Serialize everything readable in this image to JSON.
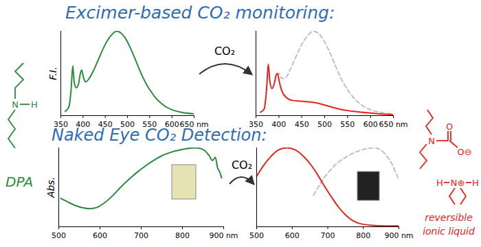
{
  "chart_data": [
    {
      "type": "line",
      "title": "Excimer-based CO₂ monitoring:",
      "ylabel": "F.I.",
      "xlim": [
        350,
        650
      ],
      "xticks": [
        350,
        400,
        450,
        500,
        550,
        600,
        {
          "value": 650,
          "label": "650 nm"
        }
      ],
      "ylim": [
        0,
        100
      ],
      "yticks": [],
      "tick_labels": "x",
      "series": [
        {
          "color": "#2a8a3e",
          "line_style": "solid",
          "x": [
            360,
            368,
            373,
            377,
            380,
            385,
            390,
            394,
            397,
            401,
            406,
            415,
            425,
            435,
            445,
            455,
            465,
            475,
            485,
            495,
            505,
            515,
            525,
            535,
            545,
            555,
            565,
            575,
            585,
            600,
            620,
            650
          ],
          "values": [
            5,
            10,
            30,
            59,
            40,
            33,
            38,
            50,
            54,
            45,
            40,
            45,
            55,
            67,
            79,
            89,
            96,
            100,
            98,
            92,
            82,
            70,
            57,
            45,
            35,
            27,
            20,
            15,
            11,
            7,
            4,
            2
          ]
        }
      ]
    },
    {
      "type": "line",
      "annotations": [
        "CO₂"
      ],
      "xlim": [
        350,
        650
      ],
      "xticks": [
        350,
        400,
        450,
        500,
        550,
        600,
        {
          "value": 650,
          "label": "650 nm"
        }
      ],
      "ylim": [
        0,
        100
      ],
      "yticks": [],
      "tick_labels": "x",
      "series": [
        {
          "color": "#c0c0c0",
          "line_style": "dashed",
          "x": [
            395,
            401,
            406,
            415,
            425,
            435,
            445,
            455,
            465,
            475,
            485,
            495,
            505,
            515,
            525,
            535,
            545,
            555,
            565,
            575,
            585,
            600,
            620,
            650
          ],
          "values": [
            48,
            50,
            44,
            45,
            55,
            67,
            79,
            89,
            96,
            100,
            98,
            92,
            82,
            70,
            57,
            45,
            35,
            27,
            20,
            15,
            11,
            7,
            4,
            2
          ]
        },
        {
          "color": "#e5231b",
          "line_style": "solid",
          "x": [
            360,
            368,
            373,
            377,
            380,
            385,
            390,
            394,
            397,
            401,
            406,
            415,
            430,
            450,
            470,
            490,
            510,
            530,
            550,
            580,
            620,
            650
          ],
          "values": [
            4,
            8,
            30,
            61,
            42,
            32,
            38,
            48,
            50,
            40,
            30,
            22,
            18,
            17,
            16,
            14,
            11,
            8,
            6,
            4,
            2,
            1
          ]
        }
      ]
    },
    {
      "type": "line",
      "title": "Naked Eye CO₂ Detection:",
      "ylabel": "Abs.",
      "annotations": [
        "N",
        "H",
        "DPA"
      ],
      "xlim": [
        500,
        900
      ],
      "xticks": [
        500,
        600,
        700,
        800,
        {
          "value": 900,
          "label": "900 nm"
        }
      ],
      "ylim": [
        0,
        100
      ],
      "yticks": [],
      "tick_labels": "x",
      "series": [
        {
          "color": "#2a8a3e",
          "line_style": "solid",
          "x": [
            505,
            520,
            540,
            560,
            575,
            590,
            610,
            630,
            650,
            670,
            690,
            710,
            730,
            750,
            770,
            790,
            810,
            830,
            845,
            855,
            865,
            873,
            880,
            885,
            890,
            895
          ],
          "values": [
            36,
            32,
            27,
            24,
            23,
            24,
            30,
            39,
            50,
            60,
            69,
            77,
            84,
            90,
            94,
            97,
            99,
            100,
            99,
            96,
            90,
            84,
            88,
            75,
            70,
            62
          ]
        }
      ]
    },
    {
      "type": "line",
      "annotations": [
        "CO₂",
        "N",
        "O",
        "O⊖",
        "H",
        "N⊕",
        "H",
        "reversible ionic liquid"
      ],
      "xlim": [
        500,
        900
      ],
      "xticks": [
        500,
        600,
        700,
        800,
        {
          "value": 900,
          "label": "900 nm"
        }
      ],
      "ylim": [
        0,
        100
      ],
      "yticks": [],
      "tick_labels": "x",
      "series": [
        {
          "color": "#c0c0c0",
          "line_style": "dashed",
          "x": [
            660,
            690,
            720,
            750,
            780,
            810,
            830,
            850,
            865,
            880,
            890,
            900
          ],
          "values": [
            40,
            62,
            78,
            88,
            95,
            99,
            100,
            97,
            90,
            80,
            70,
            60
          ]
        },
        {
          "color": "#e5231b",
          "line_style": "solid",
          "x": [
            500,
            520,
            540,
            560,
            585,
            610,
            630,
            650,
            670,
            690,
            710,
            730,
            750,
            770,
            790,
            820,
            860,
            900
          ],
          "values": [
            64,
            78,
            89,
            97,
            100,
            97,
            90,
            80,
            67,
            52,
            38,
            25,
            15,
            8,
            4,
            2,
            1,
            1
          ]
        }
      ]
    }
  ]
}
